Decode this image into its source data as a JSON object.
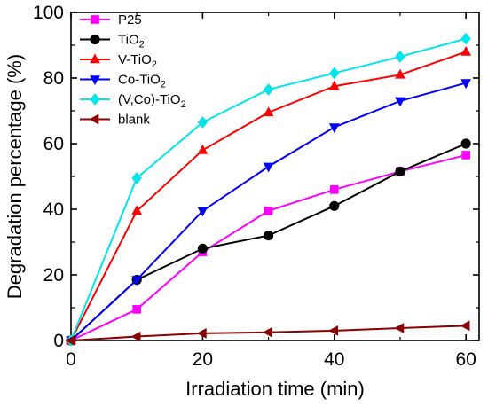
{
  "chart_data": {
    "type": "line",
    "title": "",
    "xlabel": "Irradiation time (min)",
    "ylabel": "Degradation percentage (%)",
    "xlim": [
      0,
      62
    ],
    "ylim": [
      0,
      100
    ],
    "xticks": [
      0,
      20,
      40,
      60
    ],
    "yticks": [
      0,
      20,
      40,
      60,
      80,
      100
    ],
    "legend_position": "top-left",
    "grid": false,
    "series": [
      {
        "name": "P25",
        "label_main": "P25",
        "label_sub": "",
        "label_tail": "",
        "color": "#ff00ff",
        "marker": "square",
        "x": [
          0,
          10,
          20,
          30,
          40,
          50,
          60
        ],
        "y": [
          0,
          9.5,
          27,
          39.5,
          46,
          51.5,
          56.5
        ]
      },
      {
        "name": "TiO2",
        "label_main": "TiO",
        "label_sub": "2",
        "label_tail": "",
        "color": "#000000",
        "marker": "circle",
        "x": [
          0,
          10,
          20,
          30,
          40,
          50,
          60
        ],
        "y": [
          0,
          18.5,
          28,
          32,
          41,
          51.5,
          60
        ]
      },
      {
        "name": "V-TiO2",
        "label_main": "V-TiO",
        "label_sub": "2",
        "label_tail": "",
        "color": "#ff0000",
        "marker": "triangle-up",
        "x": [
          0,
          10,
          20,
          30,
          40,
          50,
          60
        ],
        "y": [
          0,
          39.5,
          58,
          69.5,
          77.5,
          81,
          88
        ]
      },
      {
        "name": "Co-TiO2",
        "label_main": "Co-TiO",
        "label_sub": "2",
        "label_tail": "",
        "color": "#0000ff",
        "marker": "triangle-down",
        "x": [
          0,
          10,
          20,
          30,
          40,
          50,
          60
        ],
        "y": [
          0,
          18.5,
          39.5,
          53,
          65,
          73,
          78.5
        ]
      },
      {
        "name": "(V,Co)-TiO2",
        "label_main": "(V,Co)-TiO",
        "label_sub": "2",
        "label_tail": "",
        "color": "#00e5ee",
        "marker": "diamond",
        "x": [
          0,
          10,
          20,
          30,
          40,
          50,
          60
        ],
        "y": [
          0,
          49.5,
          66.5,
          76.5,
          81.5,
          86.5,
          92
        ]
      },
      {
        "name": "blank",
        "label_main": "blank",
        "label_sub": "",
        "label_tail": "",
        "color": "#8b0000",
        "marker": "triangle-left",
        "x": [
          0,
          10,
          20,
          30,
          40,
          50,
          60
        ],
        "y": [
          0,
          1.2,
          2.2,
          2.5,
          3,
          3.8,
          4.5
        ]
      }
    ]
  }
}
